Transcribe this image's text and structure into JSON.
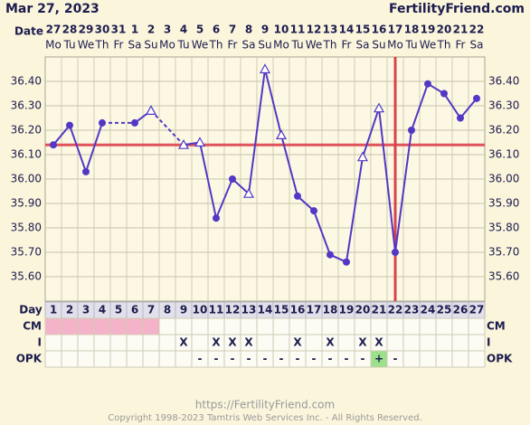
{
  "header": {
    "date": "Mar 27, 2023",
    "site": "FertilityFriend.com"
  },
  "chart_data": {
    "type": "line",
    "date_label": "Date",
    "dates": [
      "27",
      "28",
      "29",
      "30",
      "31",
      "1",
      "2",
      "3",
      "4",
      "5",
      "6",
      "7",
      "8",
      "9",
      "10",
      "11",
      "12",
      "13",
      "14",
      "15",
      "16",
      "17",
      "18",
      "19",
      "20",
      "21",
      "22"
    ],
    "weekdays": [
      "Mo",
      "Tu",
      "We",
      "Th",
      "Fr",
      "Sa",
      "Su",
      "Mo",
      "Tu",
      "We",
      "Th",
      "Fr",
      "Sa",
      "Su",
      "Mo",
      "Tu",
      "We",
      "Th",
      "Fr",
      "Sa",
      "Su",
      "Mo",
      "Tu",
      "We",
      "Th",
      "Fr",
      "Sa"
    ],
    "day_label": "Day",
    "categories": [
      "1",
      "2",
      "3",
      "4",
      "5",
      "6",
      "7",
      "8",
      "9",
      "10",
      "11",
      "12",
      "13",
      "14",
      "15",
      "16",
      "17",
      "18",
      "19",
      "20",
      "21",
      "22",
      "23",
      "24",
      "25",
      "26",
      "27"
    ],
    "series": [
      {
        "color": "#5238c4",
        "values": [
          36.14,
          36.22,
          36.03,
          36.23,
          null,
          36.23,
          36.28,
          null,
          36.14,
          36.15,
          35.84,
          36.0,
          35.94,
          36.45,
          36.18,
          35.93,
          35.87,
          35.69,
          35.66,
          36.09,
          36.29,
          35.7,
          36.2,
          36.39,
          36.35,
          36.25,
          36.33
        ],
        "markers": [
          "circle",
          "circle",
          "circle",
          "circle",
          null,
          "circle",
          "triangle",
          null,
          "triangle",
          "triangle",
          "circle",
          "circle",
          "triangle",
          "triangle",
          "triangle",
          "circle",
          "circle",
          "circle",
          "circle",
          "triangle",
          "triangle",
          "circle",
          "circle",
          "circle",
          "circle",
          "circle",
          "circle"
        ]
      }
    ],
    "coverline": 36.14,
    "coverline_color": "#e0535a",
    "ovulation": "22",
    "ovulation_color": "#d9434b",
    "ylim": [
      35.5,
      36.5
    ],
    "yticks": [
      {
        "value": 35.6,
        "label": "35.60"
      },
      {
        "value": 35.7,
        "label": "35.70"
      },
      {
        "value": 35.8,
        "label": "35.80"
      },
      {
        "value": 35.9,
        "label": "35.90"
      },
      {
        "value": 36.0,
        "label": "36.00"
      },
      {
        "value": 36.1,
        "label": "36.10"
      },
      {
        "value": 36.2,
        "label": "36.20"
      },
      {
        "value": 36.3,
        "label": "36.30"
      },
      {
        "value": 36.4,
        "label": "36.40"
      }
    ],
    "grid": true,
    "rows": [
      {
        "label": "CM",
        "cells": [
          null,
          null,
          null,
          null,
          null,
          null,
          null,
          null,
          null,
          null,
          null,
          null,
          null,
          null,
          null,
          null,
          null,
          null,
          null,
          null,
          null,
          null,
          null,
          null,
          null,
          null,
          null
        ],
        "fills": [
          "#f5b3c9",
          "#f5b3c9",
          "#f5b3c9",
          "#f5b3c9",
          "#f5b3c9",
          "#f5b3c9",
          "#f5b3c9",
          null,
          null,
          null,
          null,
          null,
          null,
          null,
          null,
          null,
          null,
          null,
          null,
          null,
          null,
          null,
          null,
          null,
          null,
          null,
          null
        ]
      },
      {
        "label": "I",
        "cells": [
          null,
          null,
          null,
          null,
          null,
          null,
          null,
          null,
          "X",
          null,
          "X",
          "X",
          "X",
          null,
          null,
          "X",
          null,
          "X",
          null,
          "X",
          "X",
          null,
          null,
          null,
          null,
          null,
          null
        ]
      },
      {
        "label": "OPK",
        "cells": [
          null,
          null,
          null,
          null,
          null,
          null,
          null,
          null,
          null,
          "-",
          "-",
          "-",
          "-",
          "-",
          "-",
          "-",
          "-",
          "-",
          "-",
          "-",
          "+",
          "-",
          null,
          null,
          null,
          null,
          null
        ],
        "fills": [
          null,
          null,
          null,
          null,
          null,
          null,
          null,
          null,
          null,
          null,
          null,
          null,
          null,
          null,
          null,
          null,
          null,
          null,
          null,
          null,
          "#9be08a",
          null,
          null,
          null,
          null,
          null,
          null
        ]
      }
    ]
  },
  "footer": {
    "url": "https://FertilityFriend.com",
    "copyright": "Copyright 1998-2023 Tamtris Web Services Inc. - All Rights Reserved."
  }
}
